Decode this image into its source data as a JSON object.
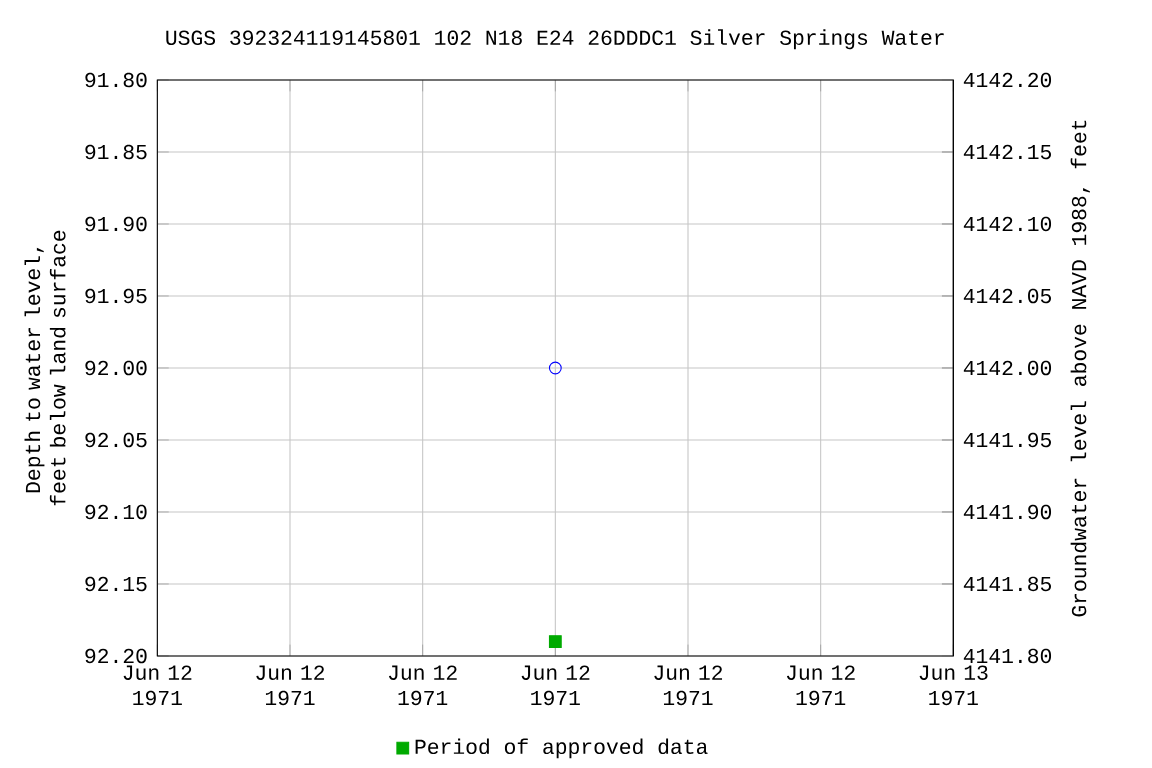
{
  "chart_data": {
    "type": "scatter",
    "title": "USGS 392324119145801 102  N18 E24 26DDDC1    Silver Springs Water",
    "ylabel": "Depth to water level, feet below land surface",
    "y2label": "Groundwater level above NAVD 1988, feet",
    "x": [
      "1971-06-12T12:00"
    ],
    "xlim": [
      "1971-06-12T00:00",
      "1971-06-13T00:00"
    ],
    "xticks": [
      {
        "value": "1971-06-12T00:00",
        "label": "Jun 12 1971"
      },
      {
        "value": "1971-06-12T04:00",
        "label": "Jun 12 1971"
      },
      {
        "value": "1971-06-12T08:00",
        "label": "Jun 12 1971"
      },
      {
        "value": "1971-06-12T12:00",
        "label": "Jun 12 1971"
      },
      {
        "value": "1971-06-12T16:00",
        "label": "Jun 12 1971"
      },
      {
        "value": "1971-06-12T20:00",
        "label": "Jun 12 1971"
      },
      {
        "value": "1971-06-13T00:00",
        "label": "Jun 13 1971"
      }
    ],
    "ylim": [
      92.2,
      91.8
    ],
    "yticks": [
      {
        "value": 91.8,
        "label": "91.80"
      },
      {
        "value": 91.85,
        "label": "91.85"
      },
      {
        "value": 91.9,
        "label": "91.90"
      },
      {
        "value": 91.95,
        "label": "91.95"
      },
      {
        "value": 92.0,
        "label": "92.00"
      },
      {
        "value": 92.05,
        "label": "92.05"
      },
      {
        "value": 92.1,
        "label": "92.10"
      },
      {
        "value": 92.15,
        "label": "92.15"
      },
      {
        "value": 92.2,
        "label": "92.20"
      }
    ],
    "y2lim": [
      4141.8,
      4142.2
    ],
    "y2ticks": [
      {
        "value": 4141.8,
        "label": "4141.80"
      },
      {
        "value": 4141.85,
        "label": "4141.85"
      },
      {
        "value": 4141.9,
        "label": "4141.90"
      },
      {
        "value": 4141.95,
        "label": "4141.95"
      },
      {
        "value": 4142.0,
        "label": "4142.00"
      },
      {
        "value": 4142.05,
        "label": "4142.05"
      },
      {
        "value": 4142.1,
        "label": "4142.10"
      },
      {
        "value": 4142.15,
        "label": "4142.15"
      },
      {
        "value": 4142.2,
        "label": "4142.20"
      }
    ],
    "grid": true,
    "legend": "bottom",
    "series": [
      {
        "color": "#0000ff",
        "marker": "circle",
        "values": [
          92.0
        ]
      },
      {
        "name": "Period of approved data",
        "color": "#00aa00",
        "marker": "square",
        "values": [
          92.19
        ]
      }
    ]
  }
}
